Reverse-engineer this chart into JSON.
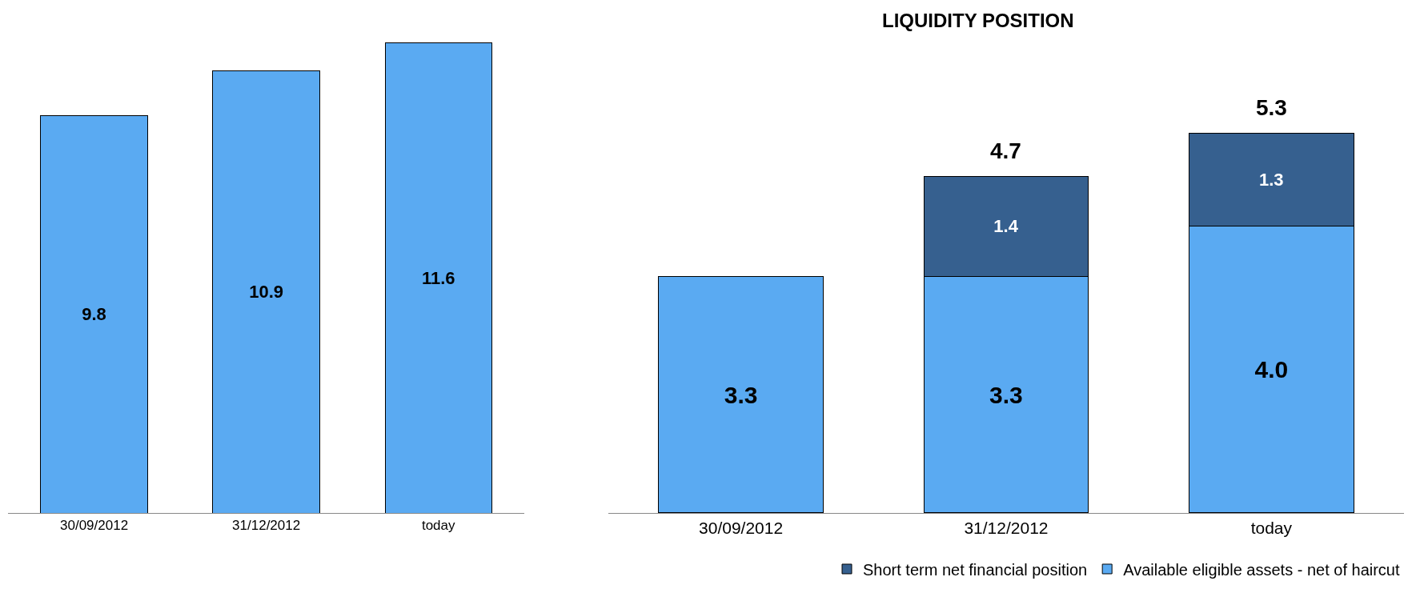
{
  "chart_data": [
    {
      "type": "bar",
      "categories": [
        "30/09/2012",
        "31/12/2012",
        "today"
      ],
      "series": [
        {
          "color": "#5aaaf2",
          "values": [
            9.8,
            10.9,
            11.6
          ]
        }
      ],
      "data_labels": true,
      "legend": false
    },
    {
      "type": "bar",
      "title": "LIQUIDITY POSITION",
      "categories": [
        "30/09/2012",
        "31/12/2012",
        "today"
      ],
      "stacked": true,
      "series": [
        {
          "name": "Available eligible assets - net of haircut",
          "color": "#5aaaf2",
          "values": [
            3.3,
            3.3,
            4.0
          ],
          "value_labels": [
            "3.3",
            "3.3",
            "4.0"
          ]
        },
        {
          "name": "Short term net financial position",
          "color": "#36608f",
          "values": [
            null,
            1.4,
            1.3
          ],
          "value_labels": [
            null,
            "1.4",
            "1.3"
          ]
        }
      ],
      "totals": [
        null,
        "4.7",
        "5.3"
      ],
      "legend": "bottom"
    }
  ]
}
